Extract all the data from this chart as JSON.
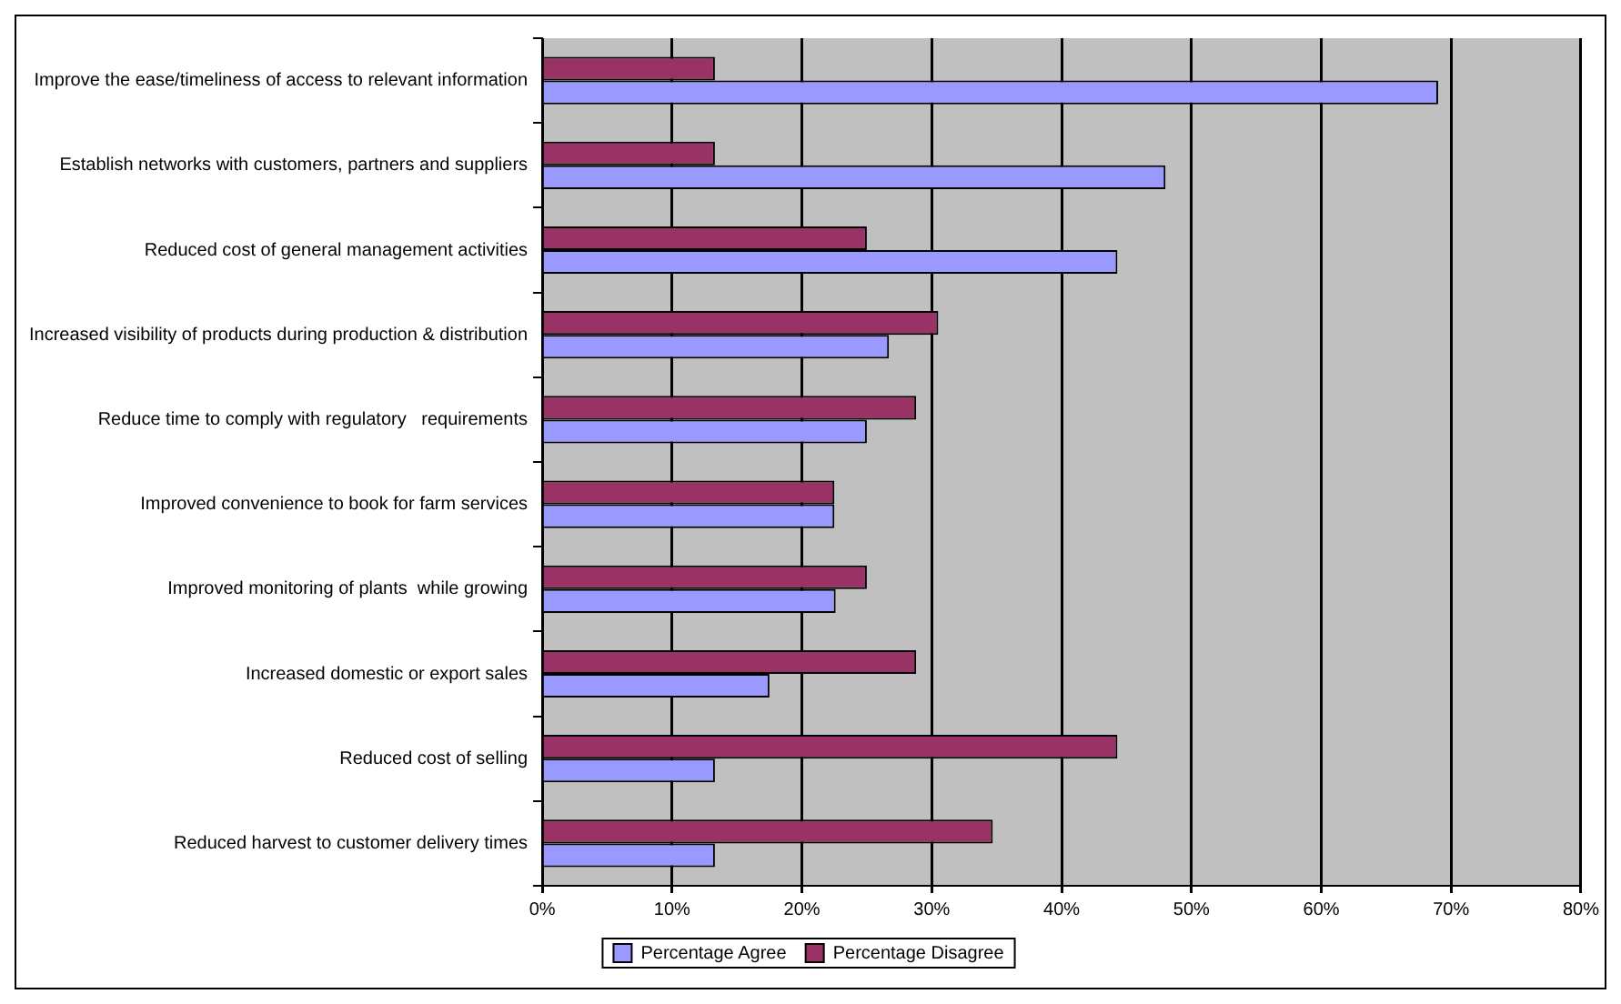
{
  "chart_data": {
    "type": "bar",
    "orientation": "horizontal",
    "categories": [
      "Improve the ease/timeliness of access to relevant information",
      "Establish networks with customers, partners and suppliers",
      "Reduced cost of general management activities",
      "Increased visibility of products during production & distribution",
      "Reduce time to comply with regulatory   requirements",
      "Improved convenience to book for farm services",
      "Improved monitoring of plants  while growing",
      "Increased domestic or export sales",
      "Reduced cost of selling",
      "Reduced harvest to customer delivery times"
    ],
    "series": [
      {
        "name": "Percentage Agree",
        "color": "#9999ff",
        "values": [
          69,
          48,
          44.3,
          26.7,
          25,
          22.5,
          22.6,
          17.5,
          13.3,
          13.3
        ]
      },
      {
        "name": "Percentage Disagree",
        "color": "#993366",
        "values": [
          13.3,
          13.3,
          25,
          30.5,
          28.8,
          22.5,
          25,
          28.8,
          44.3,
          34.7
        ]
      }
    ],
    "xlim": [
      0,
      80
    ],
    "xticks": [
      {
        "value": 0,
        "label": "0%"
      },
      {
        "value": 10,
        "label": "10%"
      },
      {
        "value": 20,
        "label": "20%"
      },
      {
        "value": 30,
        "label": "30%"
      },
      {
        "value": 40,
        "label": "40%"
      },
      {
        "value": 50,
        "label": "50%"
      },
      {
        "value": 60,
        "label": "60%"
      },
      {
        "value": 70,
        "label": "70%"
      },
      {
        "value": 80,
        "label": "80%"
      }
    ],
    "grid": "x",
    "legend": "bottom"
  }
}
